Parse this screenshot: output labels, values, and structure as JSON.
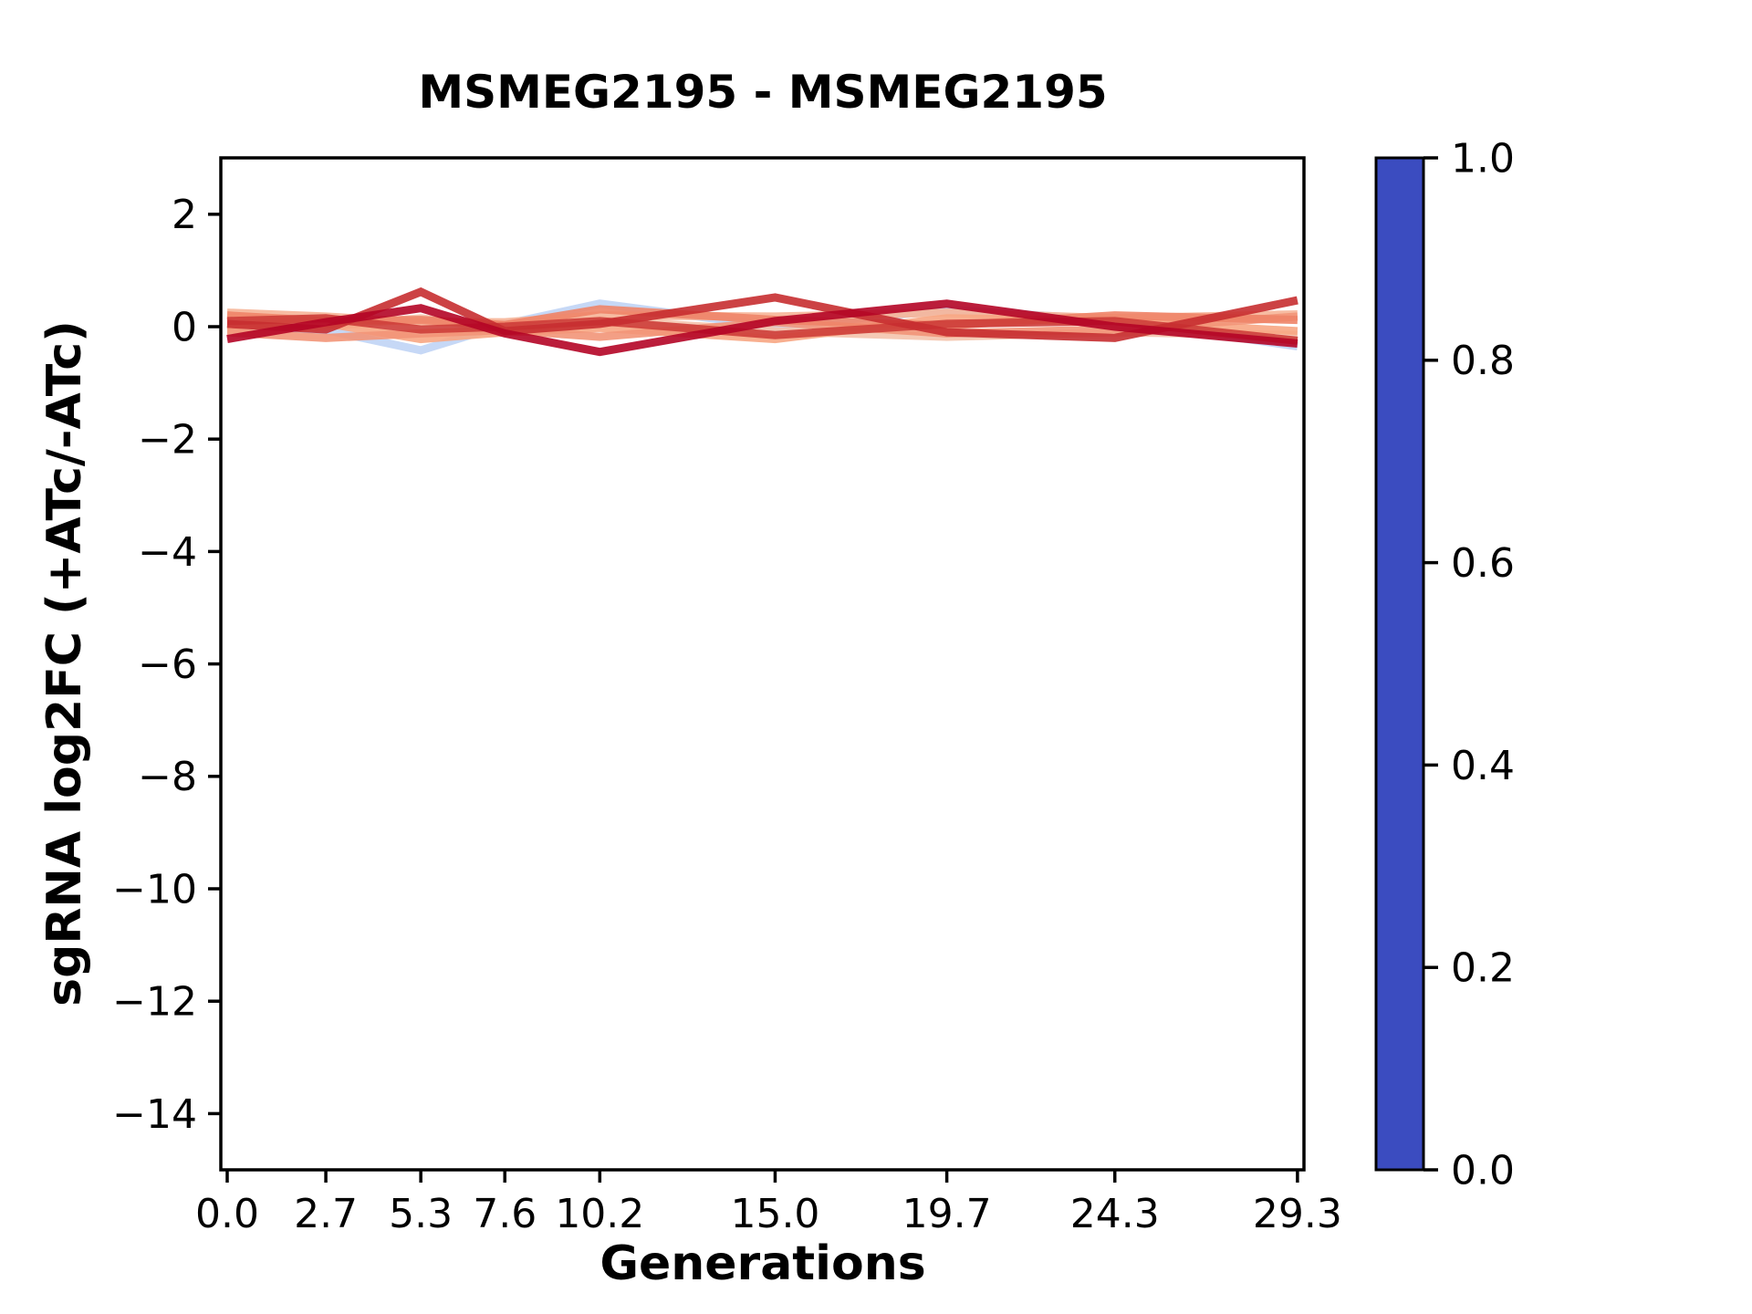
{
  "chart_data": {
    "type": "line",
    "title": "MSMEG2195 - MSMEG2195",
    "xlabel": "Generations",
    "ylabel": "sgRNA log2FC (+ATc/-ATc)",
    "x": [
      0.0,
      2.7,
      5.3,
      7.6,
      10.2,
      15.0,
      19.7,
      24.3,
      29.3
    ],
    "x_tick_labels": [
      "0.0",
      "2.7",
      "5.3",
      "7.6",
      "10.2",
      "15.0",
      "19.7",
      "24.3",
      "29.3"
    ],
    "y_ticks": [
      2,
      0,
      -2,
      -4,
      -6,
      -8,
      -10,
      -12,
      -14
    ],
    "y_tick_labels": [
      "2",
      "0",
      "−2",
      "−4",
      "−6",
      "−8",
      "−10",
      "−12",
      "−14"
    ],
    "xlim": [
      -0.2,
      29.5
    ],
    "ylim": [
      -15,
      3
    ],
    "grid": false,
    "legend": "none",
    "series": [
      {
        "colormap_value": 0.4,
        "color": "#c0d4f5",
        "values": [
          0.02,
          -0.06,
          -0.42,
          0.04,
          0.41,
          0.0,
          0.3,
          0.12,
          -0.35
        ]
      },
      {
        "colormap_value": 0.6,
        "color": "#f4c4ad",
        "values": [
          -0.05,
          0.0,
          0.15,
          -0.04,
          0.12,
          -0.08,
          -0.18,
          -0.1,
          -0.15
        ]
      },
      {
        "colormap_value": 0.65,
        "color": "#f6b598",
        "values": [
          0.25,
          0.18,
          0.08,
          0.08,
          0.2,
          0.18,
          0.25,
          0.15,
          0.22
        ]
      },
      {
        "colormap_value": 0.7,
        "color": "#f7a683",
        "values": [
          0.02,
          0.06,
          -0.22,
          -0.1,
          -0.02,
          -0.22,
          0.15,
          0.1,
          -0.08
        ]
      },
      {
        "colormap_value": 0.75,
        "color": "#f29578",
        "values": [
          -0.1,
          -0.2,
          -0.12,
          -0.06,
          -0.18,
          0.08,
          -0.12,
          -0.05,
          0.18
        ]
      },
      {
        "colormap_value": 0.8,
        "color": "#ee8468",
        "values": [
          0.2,
          0.1,
          0.12,
          0.03,
          0.31,
          0.12,
          0.02,
          0.2,
          0.12
        ]
      },
      {
        "colormap_value": 0.92,
        "color": "#cd3d38",
        "values": [
          0.1,
          0.15,
          -0.05,
          0.0,
          0.1,
          -0.15,
          0.05,
          0.1,
          -0.25
        ]
      },
      {
        "colormap_value": 0.95,
        "color": "#c62d30",
        "values": [
          0.05,
          -0.05,
          0.62,
          -0.08,
          0.05,
          0.52,
          -0.1,
          -0.2,
          0.47
        ]
      },
      {
        "colormap_value": 1.0,
        "color": "#b40426",
        "values": [
          -0.22,
          0.08,
          0.33,
          -0.12,
          -0.45,
          0.1,
          0.41,
          0.0,
          -0.3
        ]
      }
    ],
    "colorbar": {
      "colormap": "coolwarm",
      "tick_labels": [
        "1.0",
        "0.8",
        "0.6",
        "0.4",
        "0.2",
        "0.0"
      ],
      "tick_values": [
        1.0,
        0.8,
        0.6,
        0.4,
        0.2,
        0.0
      ],
      "stops": [
        {
          "t": 0.0,
          "color": "#3b4cc0"
        },
        {
          "t": 0.1,
          "color": "#5977e3"
        },
        {
          "t": 0.2,
          "color": "#7b9ff9"
        },
        {
          "t": 0.3,
          "color": "#9ebeff"
        },
        {
          "t": 0.4,
          "color": "#c0d4f5"
        },
        {
          "t": 0.5,
          "color": "#dcdcdc"
        },
        {
          "t": 0.6,
          "color": "#f4c4ad"
        },
        {
          "t": 0.7,
          "color": "#f7a683"
        },
        {
          "t": 0.8,
          "color": "#ee8468"
        },
        {
          "t": 0.9,
          "color": "#d65244"
        },
        {
          "t": 1.0,
          "color": "#b40426"
        }
      ]
    }
  }
}
